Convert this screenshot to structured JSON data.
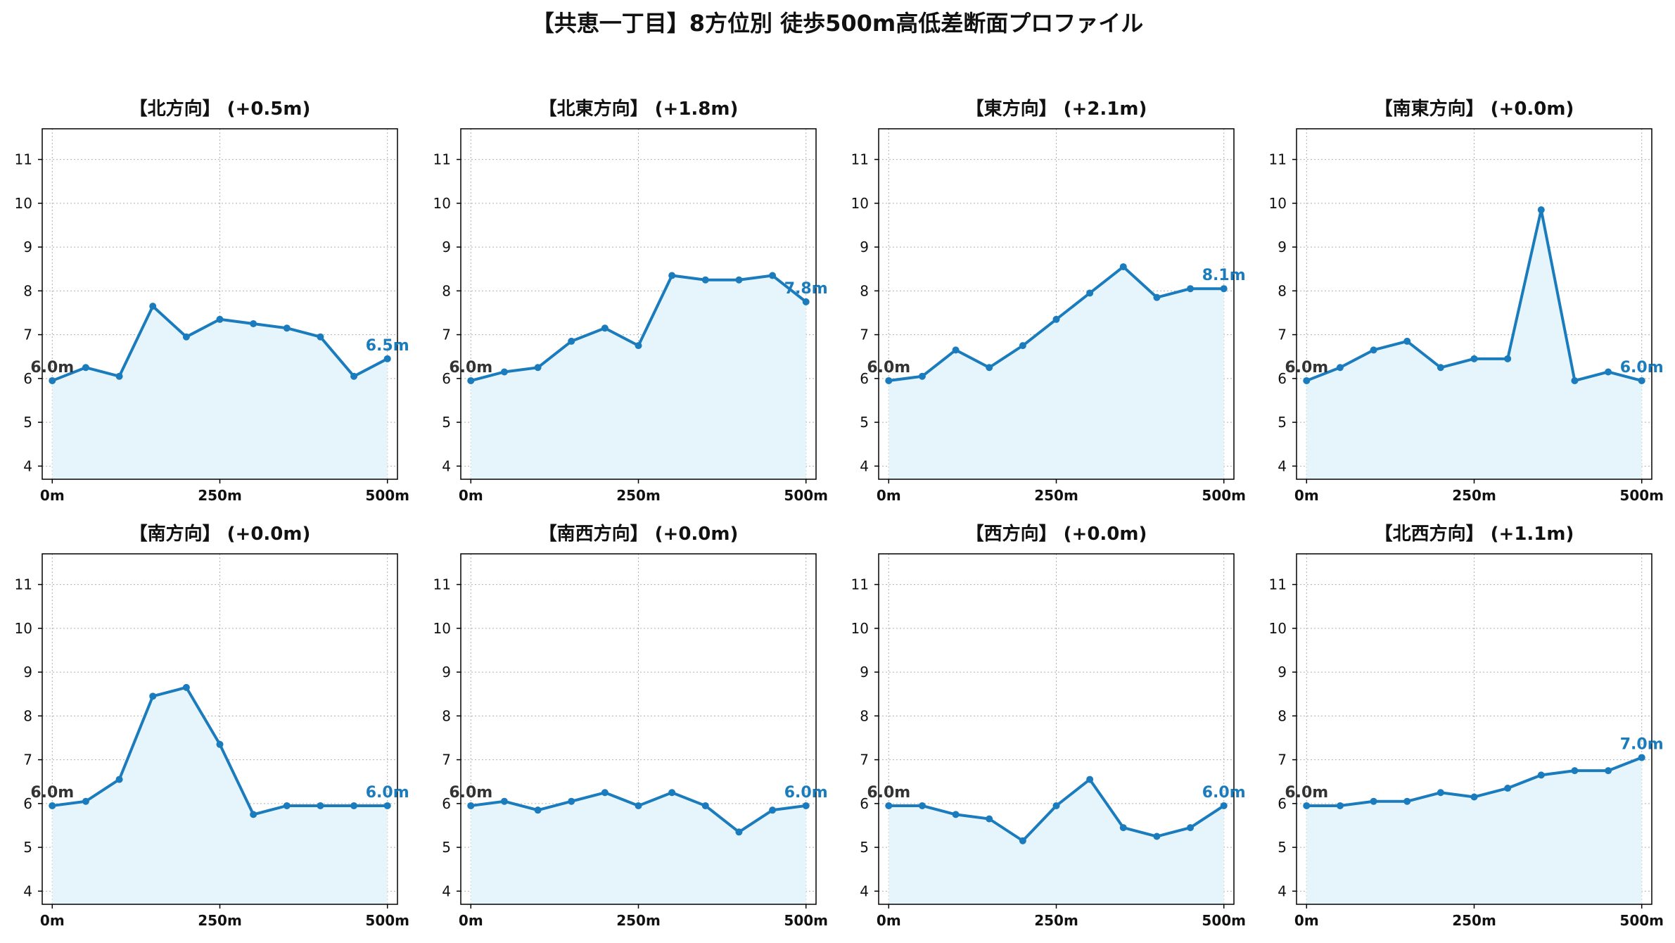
{
  "figure": {
    "title": "【共恵一丁目】8方位別 徒歩500m高低差断面プロファイル"
  },
  "colors": {
    "line": "#1a7bbd",
    "fill": "#e6f5fc",
    "start_label": "#333333",
    "end_label": "#1a7bbd",
    "grid": "#b0b0b0"
  },
  "chart_data": [
    {
      "type": "area",
      "title": "【北方向】 (+0.5m)",
      "x": [
        0,
        50,
        100,
        150,
        200,
        250,
        300,
        350,
        400,
        450,
        500
      ],
      "y": [
        5.95,
        6.25,
        6.05,
        7.65,
        6.95,
        7.35,
        7.25,
        7.15,
        6.95,
        6.05,
        6.45
      ],
      "ylim": [
        3.7,
        11.7
      ],
      "yticks": [
        "4",
        "5",
        "6",
        "7",
        "8",
        "9",
        "10",
        "11"
      ],
      "xticks": [
        "0m",
        "250m",
        "500m"
      ],
      "start_label": "6.0m",
      "end_label": "6.5m",
      "grid": true
    },
    {
      "type": "area",
      "title": "【北東方向】 (+1.8m)",
      "x": [
        0,
        50,
        100,
        150,
        200,
        250,
        300,
        350,
        400,
        450,
        500
      ],
      "y": [
        5.95,
        6.15,
        6.25,
        6.85,
        7.15,
        6.75,
        8.35,
        8.25,
        8.25,
        8.35,
        7.75
      ],
      "ylim": [
        3.7,
        11.7
      ],
      "yticks": [
        "4",
        "5",
        "6",
        "7",
        "8",
        "9",
        "10",
        "11"
      ],
      "xticks": [
        "0m",
        "250m",
        "500m"
      ],
      "start_label": "6.0m",
      "end_label": "7.8m",
      "grid": true
    },
    {
      "type": "area",
      "title": "【東方向】 (+2.1m)",
      "x": [
        0,
        50,
        100,
        150,
        200,
        250,
        300,
        350,
        400,
        450,
        500
      ],
      "y": [
        5.95,
        6.05,
        6.65,
        6.25,
        6.75,
        7.35,
        7.95,
        8.55,
        7.85,
        8.05,
        8.05
      ],
      "ylim": [
        3.7,
        11.7
      ],
      "yticks": [
        "4",
        "5",
        "6",
        "7",
        "8",
        "9",
        "10",
        "11"
      ],
      "xticks": [
        "0m",
        "250m",
        "500m"
      ],
      "start_label": "6.0m",
      "end_label": "8.1m",
      "grid": true
    },
    {
      "type": "area",
      "title": "【南東方向】 (+0.0m)",
      "x": [
        0,
        50,
        100,
        150,
        200,
        250,
        300,
        350,
        400,
        450,
        500
      ],
      "y": [
        5.95,
        6.25,
        6.65,
        6.85,
        6.25,
        6.45,
        6.45,
        9.85,
        5.95,
        6.15,
        5.95
      ],
      "ylim": [
        3.7,
        11.7
      ],
      "yticks": [
        "4",
        "5",
        "6",
        "7",
        "8",
        "9",
        "10",
        "11"
      ],
      "xticks": [
        "0m",
        "250m",
        "500m"
      ],
      "start_label": "6.0m",
      "end_label": "6.0m",
      "grid": true
    },
    {
      "type": "area",
      "title": "【南方向】 (+0.0m)",
      "x": [
        0,
        50,
        100,
        150,
        200,
        250,
        300,
        350,
        400,
        450,
        500
      ],
      "y": [
        5.95,
        6.05,
        6.55,
        8.45,
        8.65,
        7.35,
        5.75,
        5.95,
        5.95,
        5.95,
        5.95
      ],
      "ylim": [
        3.7,
        11.7
      ],
      "yticks": [
        "4",
        "5",
        "6",
        "7",
        "8",
        "9",
        "10",
        "11"
      ],
      "xticks": [
        "0m",
        "250m",
        "500m"
      ],
      "start_label": "6.0m",
      "end_label": "6.0m",
      "grid": true
    },
    {
      "type": "area",
      "title": "【南西方向】 (+0.0m)",
      "x": [
        0,
        50,
        100,
        150,
        200,
        250,
        300,
        350,
        400,
        450,
        500
      ],
      "y": [
        5.95,
        6.05,
        5.85,
        6.05,
        6.25,
        5.95,
        6.25,
        5.95,
        5.35,
        5.85,
        5.95
      ],
      "ylim": [
        3.7,
        11.7
      ],
      "yticks": [
        "4",
        "5",
        "6",
        "7",
        "8",
        "9",
        "10",
        "11"
      ],
      "xticks": [
        "0m",
        "250m",
        "500m"
      ],
      "start_label": "6.0m",
      "end_label": "6.0m",
      "grid": true
    },
    {
      "type": "area",
      "title": "【西方向】 (+0.0m)",
      "x": [
        0,
        50,
        100,
        150,
        200,
        250,
        300,
        350,
        400,
        450,
        500
      ],
      "y": [
        5.95,
        5.95,
        5.75,
        5.65,
        5.15,
        5.95,
        6.55,
        5.45,
        5.25,
        5.45,
        5.95
      ],
      "ylim": [
        3.7,
        11.7
      ],
      "yticks": [
        "4",
        "5",
        "6",
        "7",
        "8",
        "9",
        "10",
        "11"
      ],
      "xticks": [
        "0m",
        "250m",
        "500m"
      ],
      "start_label": "6.0m",
      "end_label": "6.0m",
      "grid": true
    },
    {
      "type": "area",
      "title": "【北西方向】 (+1.1m)",
      "x": [
        0,
        50,
        100,
        150,
        200,
        250,
        300,
        350,
        400,
        450,
        500
      ],
      "y": [
        5.95,
        5.95,
        6.05,
        6.05,
        6.25,
        6.15,
        6.35,
        6.65,
        6.75,
        6.75,
        7.05
      ],
      "ylim": [
        3.7,
        11.7
      ],
      "yticks": [
        "4",
        "5",
        "6",
        "7",
        "8",
        "9",
        "10",
        "11"
      ],
      "xticks": [
        "0m",
        "250m",
        "500m"
      ],
      "start_label": "6.0m",
      "end_label": "7.0m",
      "grid": true
    }
  ]
}
